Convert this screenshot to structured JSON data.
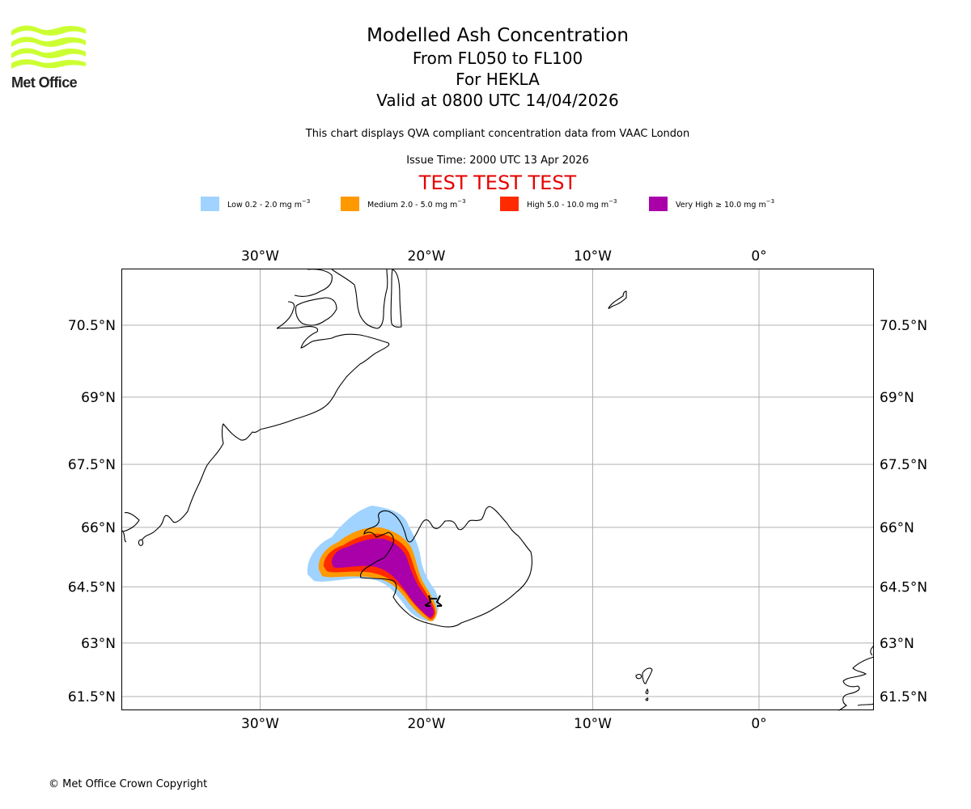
{
  "logo": {
    "name": "met-office-logo",
    "text": "Met Office",
    "wave_color": "#ccff33"
  },
  "title": {
    "line1": "Modelled Ash Concentration",
    "line2": "From FL050 to FL100",
    "line3": "For HEKLA",
    "line4": "Valid at 0800 UTC 14/04/2026"
  },
  "subtitle": "This chart displays QVA compliant concentration data from VAAC London",
  "issue_time": "Issue Time: 2000 UTC 13 Apr 2026",
  "test_banner": "TEST TEST TEST",
  "legend": [
    {
      "label": "Low 0.2 - 2.0 mg m",
      "unit_exp": "−3",
      "color": "#a0d3ff"
    },
    {
      "label": "Medium 2.0 - 5.0 mg m",
      "unit_exp": "−3",
      "color": "#ff9900"
    },
    {
      "label": "High 5.0 - 10.0 mg m",
      "unit_exp": "−3",
      "color": "#ff2a00"
    },
    {
      "label": "Very High ≥ 10.0 mg m",
      "unit_exp": "−3",
      "color": "#aa00aa"
    }
  ],
  "map": {
    "lon_ticks": [
      {
        "value": -30,
        "label": "30°W"
      },
      {
        "value": -20,
        "label": "20°W"
      },
      {
        "value": -10,
        "label": "10°W"
      },
      {
        "value": 0,
        "label": "0°"
      }
    ],
    "lat_ticks": [
      {
        "value": 70.5,
        "label": "70.5°N"
      },
      {
        "value": 69,
        "label": "69°N"
      },
      {
        "value": 67.5,
        "label": "67.5°N"
      },
      {
        "value": 66,
        "label": "66°N"
      },
      {
        "value": 64.5,
        "label": "64.5°N"
      },
      {
        "value": 63,
        "label": "63°N"
      },
      {
        "value": 61.5,
        "label": "61.5°N"
      }
    ],
    "volcano": {
      "name": "HEKLA",
      "marker": "volcano-icon",
      "lon": -19.7,
      "lat": 64.0
    },
    "grid_color": "#b0b0b0"
  },
  "footer": "© Met Office Crown Copyright"
}
